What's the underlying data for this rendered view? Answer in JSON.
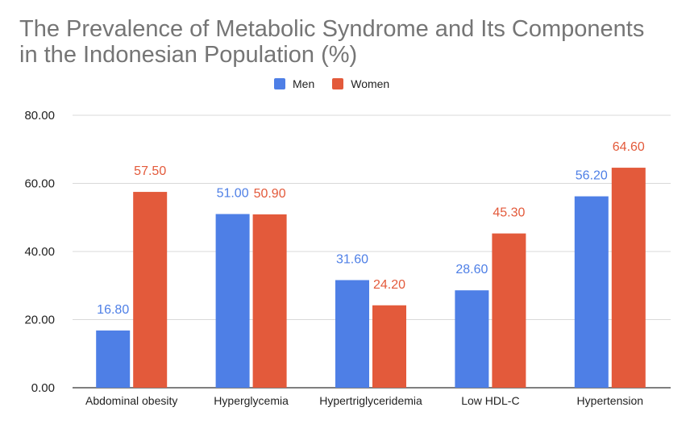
{
  "chart_data": {
    "type": "bar",
    "title": "The Prevalence of Metabolic Syndrome and Its Components in the Indonesian Population (%)",
    "categories": [
      "Abdominal obesity",
      "Hyperglycemia",
      "Hypertriglyceridemia",
      "Low HDL-C",
      "Hypertension"
    ],
    "series": [
      {
        "name": "Men",
        "color": "#4e7fe6",
        "values": [
          16.8,
          51.0,
          31.6,
          28.6,
          56.2
        ]
      },
      {
        "name": "Women",
        "color": "#e35a3b",
        "values": [
          57.5,
          50.9,
          24.2,
          45.3,
          64.6
        ]
      }
    ],
    "yticks": [
      "0.00",
      "20.00",
      "40.00",
      "60.00",
      "80.00"
    ],
    "ylim": [
      0,
      80
    ],
    "xlabel": "",
    "ylabel": "",
    "legend_position": "top-center",
    "value_format_decimals": 2,
    "grid": true
  }
}
